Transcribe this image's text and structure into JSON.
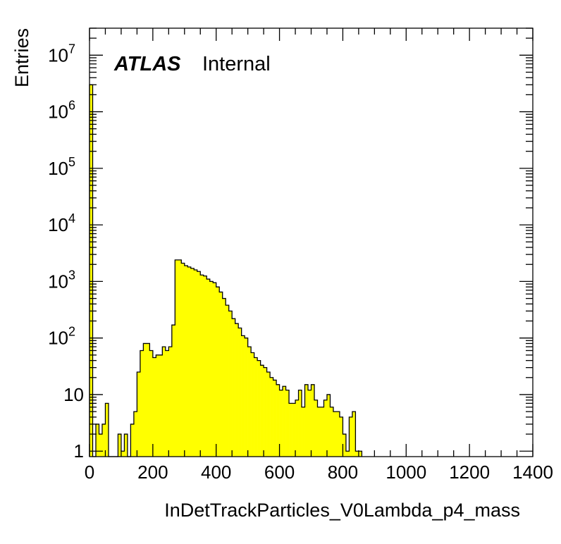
{
  "chart_data": {
    "type": "bar",
    "style": "histogram",
    "xlabel": "InDetTrackParticles_V0Lambda_p4_mass",
    "ylabel": "Entries",
    "label_bold": "ATLAS",
    "label_text": "Internal",
    "x_scale": "linear",
    "y_scale": "log",
    "xlim": [
      0,
      1400
    ],
    "ylim": [
      0.8,
      30000000
    ],
    "bin_width": 10,
    "x_ticks": [
      0,
      200,
      400,
      600,
      800,
      1000,
      1200,
      1400
    ],
    "x_tick_labels": [
      "0",
      "200",
      "400",
      "600",
      "800",
      "1000",
      "1200",
      "1400"
    ],
    "y_ticks": [
      {
        "value": 1,
        "base": "1",
        "exp": ""
      },
      {
        "value": 10,
        "base": "10",
        "exp": ""
      },
      {
        "value": 100,
        "base": "10",
        "exp": "2"
      },
      {
        "value": 1000,
        "base": "10",
        "exp": "3"
      },
      {
        "value": 10000,
        "base": "10",
        "exp": "4"
      },
      {
        "value": 100000,
        "base": "10",
        "exp": "5"
      },
      {
        "value": 1000000,
        "base": "10",
        "exp": "6"
      },
      {
        "value": 10000000,
        "base": "10",
        "exp": "7"
      }
    ],
    "fill_color": "#ffff00",
    "line_color": "#000000",
    "bin_edges_start": 0,
    "counts": [
      3000000,
      0,
      3,
      2,
      3,
      7,
      0,
      0,
      0,
      2,
      1,
      2,
      0,
      3,
      5,
      25,
      60,
      80,
      80,
      60,
      45,
      50,
      50,
      70,
      60,
      70,
      170,
      2400,
      2400,
      2100,
      1900,
      1800,
      1700,
      1600,
      1500,
      1300,
      1250,
      1100,
      1000,
      950,
      800,
      650,
      500,
      380,
      300,
      220,
      180,
      150,
      110,
      100,
      70,
      55,
      45,
      40,
      33,
      30,
      25,
      20,
      18,
      15,
      12,
      14,
      12,
      7,
      7,
      8,
      12,
      6,
      15,
      12,
      15,
      8,
      6,
      6,
      8,
      10,
      6,
      5,
      5,
      4,
      2,
      1,
      4,
      5,
      1,
      1
    ]
  }
}
